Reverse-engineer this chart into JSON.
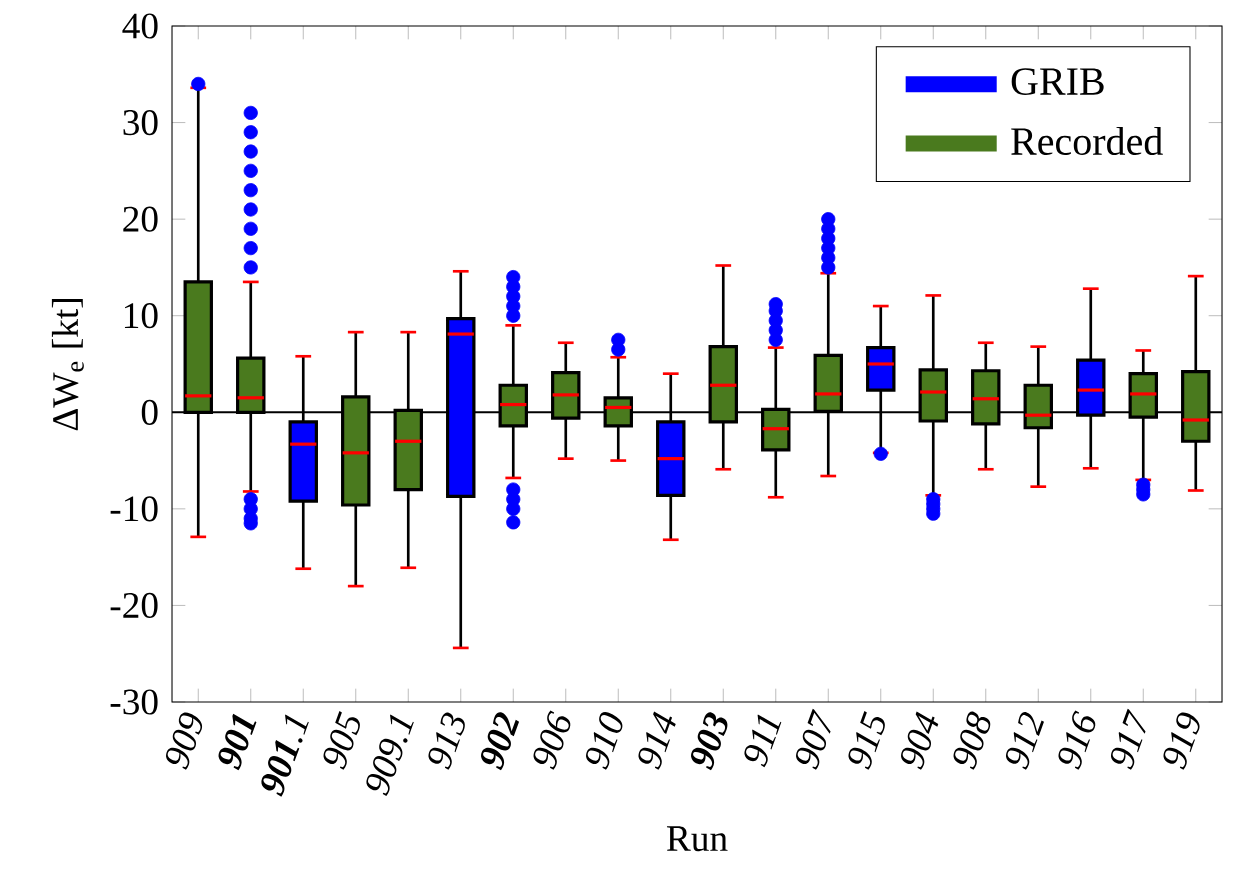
{
  "chart_data": {
    "type": "box",
    "xlabel": "Run",
    "ylabel": "ΔW$_{e}$ [kt]",
    "categories": [
      "909",
      "**901**",
      "**901**.1",
      "905",
      "909.1",
      "913",
      "**902**",
      "906",
      "910",
      "914",
      "**903**",
      "911",
      "907",
      "915",
      "904",
      "908",
      "912",
      "916",
      "917",
      "919"
    ],
    "series": [
      {
        "name": "GRIB",
        "color": "#0000ff",
        "boxes": [
          null,
          null,
          {
            "low": -16.2,
            "q1": -9.2,
            "median": -3.3,
            "q3": -1,
            "high": 5.8
          },
          null,
          null,
          {
            "low": -24.4,
            "q1": -8.7,
            "median": 8.1,
            "q3": 9.7,
            "high": 14.6
          },
          null,
          null,
          null,
          {
            "low": -13.2,
            "q1": -8.6,
            "median": -4.8,
            "q3": -1,
            "high": 4
          },
          null,
          null,
          null,
          {
            "low": -4.2,
            "q1": 2.3,
            "median": 5,
            "q3": 6.7,
            "high": 11,
            "outliers": [
              -4.3
            ]
          },
          null,
          null,
          null,
          {
            "low": -5.8,
            "q1": -0.3,
            "median": 2.3,
            "q3": 5.4,
            "high": 12.8
          },
          null,
          null
        ]
      },
      {
        "name": "Recorded",
        "color": "#4a7a1e",
        "boxes": [
          {
            "low": -12.9,
            "q1": 0,
            "median": 1.7,
            "q3": 13.5,
            "high": 33.6,
            "outliers": [
              34
            ]
          },
          {
            "low": -8.2,
            "q1": 0,
            "median": 1.5,
            "q3": 5.6,
            "high": 13.5,
            "outliers": [
              15,
              17,
              19,
              21,
              23,
              25,
              27,
              29,
              31,
              -9,
              -10,
              -11,
              -11.5
            ]
          },
          null,
          {
            "low": -18,
            "q1": -9.6,
            "median": -4.2,
            "q3": 1.6,
            "high": 8.3
          },
          {
            "low": -16.1,
            "q1": -8,
            "median": -3,
            "q3": 0.2,
            "high": 8.3
          },
          null,
          {
            "low": -6.8,
            "q1": -1.4,
            "median": 0.8,
            "q3": 2.8,
            "high": 9,
            "outliers": [
              10,
              11,
              12,
              13,
              14,
              -8,
              -9,
              -10,
              -11.4
            ]
          },
          {
            "low": -4.8,
            "q1": -0.6,
            "median": 1.8,
            "q3": 4.1,
            "high": 7.2
          },
          {
            "low": -5,
            "q1": -1.4,
            "median": 0.5,
            "q3": 1.5,
            "high": 5.7,
            "outliers": [
              6.5,
              7.5
            ]
          },
          null,
          {
            "low": -5.9,
            "q1": -1,
            "median": 2.8,
            "q3": 6.8,
            "high": 15.2
          },
          {
            "low": -8.8,
            "q1": -3.9,
            "median": -1.7,
            "q3": 0.3,
            "high": 6.7,
            "outliers": [
              7.5,
              8.5,
              9.5,
              10.5,
              11.2
            ]
          },
          {
            "low": -6.6,
            "q1": 0.1,
            "median": 1.9,
            "q3": 5.9,
            "high": 14.4,
            "outliers": [
              15,
              16,
              17,
              18,
              19,
              20
            ]
          },
          null,
          {
            "low": -8.6,
            "q1": -0.9,
            "median": 2.1,
            "q3": 4.4,
            "high": 12.1,
            "outliers": [
              -9,
              -9.5,
              -10,
              -10.5
            ]
          },
          {
            "low": -5.9,
            "q1": -1.2,
            "median": 1.4,
            "q3": 4.3,
            "high": 7.2
          },
          {
            "low": -7.7,
            "q1": -1.6,
            "median": -0.3,
            "q3": 2.8,
            "high": 6.8
          },
          null,
          {
            "low": -7,
            "q1": -0.5,
            "median": 1.9,
            "q3": 4,
            "high": 6.4,
            "outliers": [
              -7.5,
              -8,
              -8.5
            ]
          },
          {
            "low": -8.1,
            "q1": -3,
            "median": -0.8,
            "q3": 4.2,
            "high": 14.1
          }
        ]
      }
    ],
    "ylim": [
      -30,
      40
    ],
    "yticks": [
      -30,
      -20,
      -10,
      0,
      10,
      20,
      30,
      40
    ],
    "ref_lines": [
      {
        "axis": "y",
        "value": 0
      }
    ],
    "legend": "top right",
    "grid": false
  }
}
